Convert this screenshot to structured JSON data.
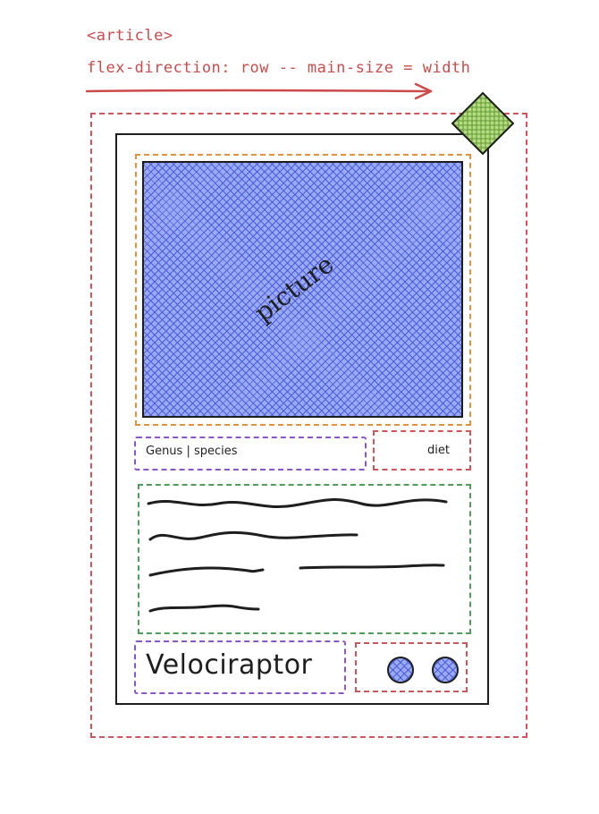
{
  "annotation": {
    "tag_label": "<article>",
    "flex_label": "flex-direction: row -- main-size = width"
  },
  "card": {
    "picture_label": "picture",
    "genus_label": "Genus | species",
    "diet_label": "diet",
    "name_label": "Velociraptor"
  },
  "colors": {
    "annotation_red": "#cc4a4a",
    "hatch_blue": "#9aa9f2",
    "hatch_green": "#b5dc84",
    "outline_orange": "#e5913a",
    "outline_purple": "#8a55c9",
    "outline_green": "#4f9d5a"
  }
}
